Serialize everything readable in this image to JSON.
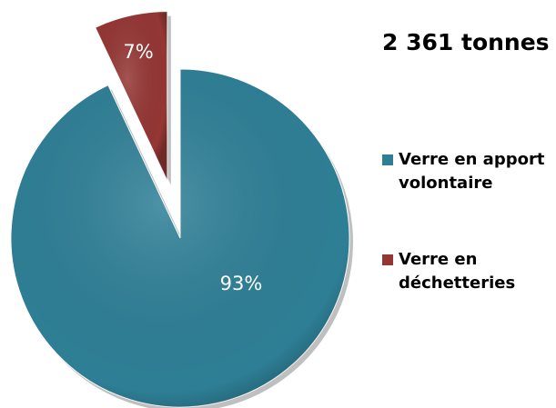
{
  "chart_data": {
    "type": "pie",
    "annotation": "2 361 tonnes",
    "categories": [
      "Verre en apport volontaire",
      "Verre en déchetteries"
    ],
    "values": [
      93,
      7
    ],
    "value_labels": [
      "93%",
      "7%"
    ],
    "colors": [
      "#2e7f96",
      "#943634"
    ],
    "explode": [
      false,
      true
    ],
    "legend": "right"
  }
}
